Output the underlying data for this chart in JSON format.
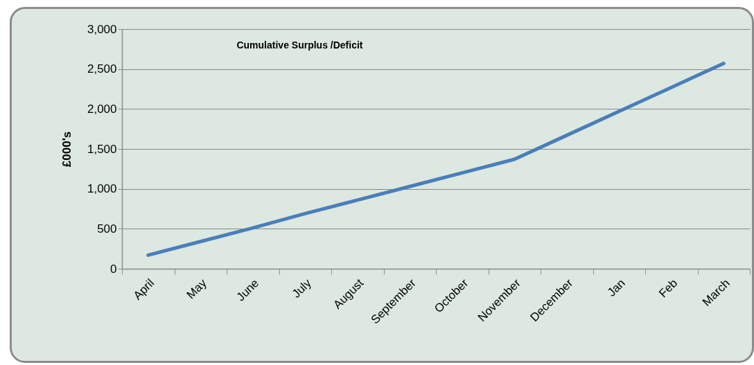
{
  "chart_data": {
    "type": "line",
    "title": "Cumulative Surplus /Deficit",
    "ylabel": "£000's",
    "categories": [
      "April",
      "May",
      "June",
      "July",
      "August",
      "September",
      "October",
      "November",
      "December",
      "Jan",
      "Feb",
      "March"
    ],
    "series": [
      {
        "color": "#4a7ebb",
        "values": [
          170,
          340,
          510,
          690,
          860,
          1030,
          1200,
          1370,
          1670,
          1970,
          2270,
          2570
        ]
      }
    ],
    "ylim": [
      0,
      3000
    ],
    "yticks": [
      0,
      500,
      {
        "value": 1000,
        "label": "1,000"
      },
      {
        "value": 1500,
        "label": "1,500"
      },
      {
        "value": 2000,
        "label": "2,000"
      },
      {
        "value": 2500,
        "label": "2,500"
      },
      {
        "value": 3000,
        "label": "3,000"
      }
    ],
    "grid": "y",
    "marker": "none",
    "line_style": "solid"
  }
}
